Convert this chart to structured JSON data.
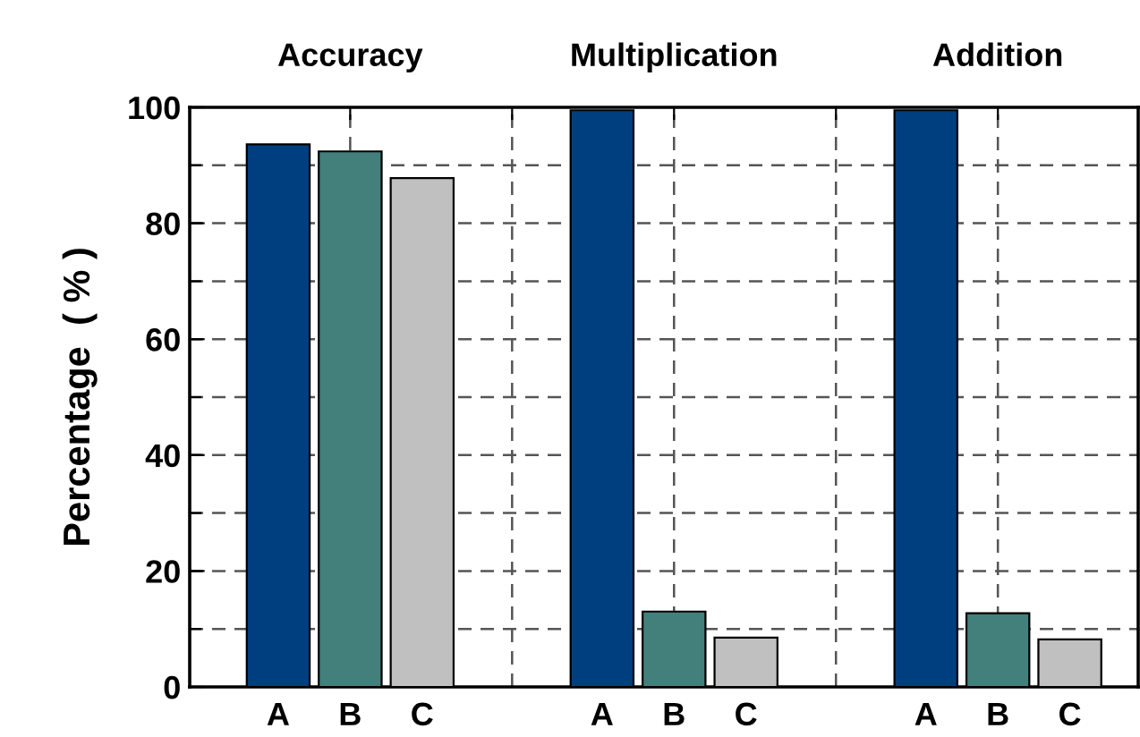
{
  "chart_data": {
    "type": "bar",
    "ylabel": "Percentage  ( % )",
    "annotations": [
      "Accuracy",
      "Multiplication",
      "Addition"
    ],
    "categories": [
      "A",
      "B",
      "C",
      "A",
      "B",
      "C",
      "A",
      "B",
      "C"
    ],
    "values": [
      93.6,
      92.4,
      87.8,
      99.5,
      13.0,
      8.5,
      99.5,
      12.7,
      8.2
    ],
    "colors": [
      "#003f7f",
      "#437f7b",
      "#c0c0c0",
      "#003f7f",
      "#437f7b",
      "#c0c0c0",
      "#003f7f",
      "#437f7b",
      "#c0c0c0"
    ],
    "ylim": [
      0,
      100
    ],
    "yticks": [
      0,
      20,
      40,
      60,
      80,
      100
    ],
    "grid": true
  }
}
